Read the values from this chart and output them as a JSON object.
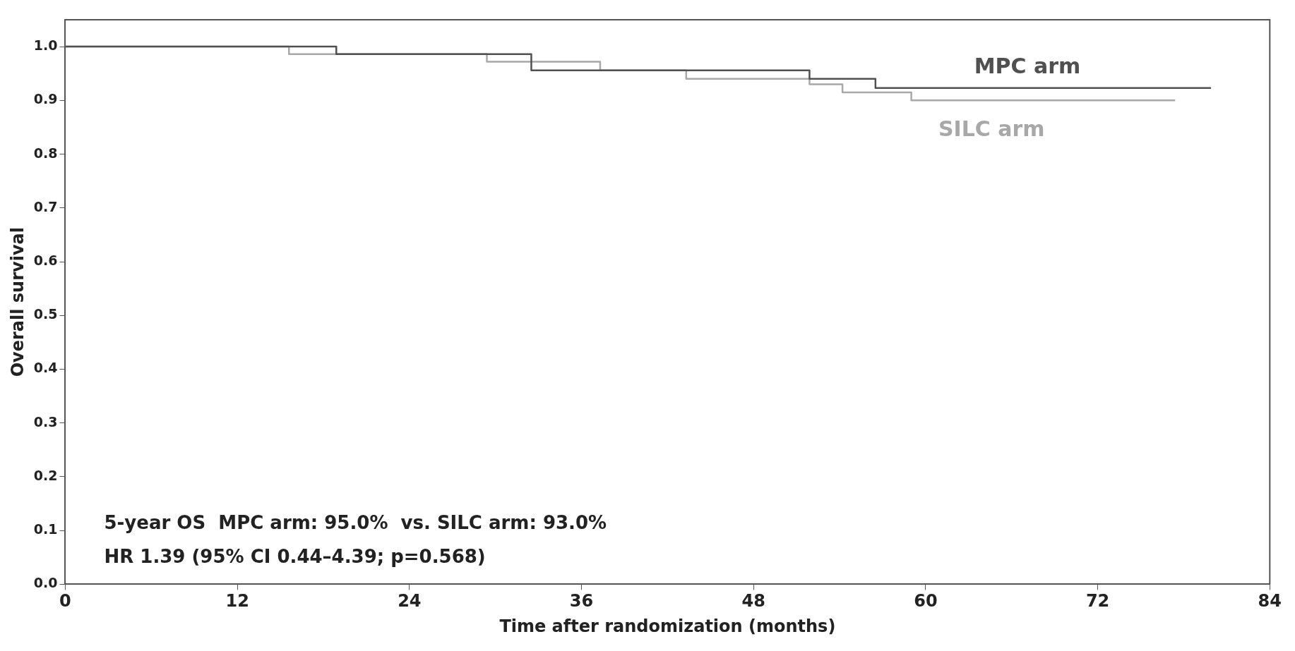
{
  "chart_data": {
    "type": "step",
    "xlabel": "Time after randomization (months)",
    "ylabel": "Overall survival",
    "series": [
      {
        "name": "MPC arm",
        "color": "#505050",
        "x": [
          0,
          18.9,
          32.5,
          51.9,
          56.5,
          79.9
        ],
        "values": [
          1,
          0.986,
          0.956,
          0.94,
          0.923,
          0.923
        ]
      },
      {
        "name": "SILC arm",
        "color": "#a8a8a8",
        "x": [
          0,
          15.6,
          29.4,
          37.3,
          43.3,
          51.9,
          54.2,
          59,
          77.4
        ],
        "values": [
          1,
          0.986,
          0.972,
          0.956,
          0.94,
          0.93,
          0.915,
          0.9,
          0.9
        ]
      }
    ],
    "xlim": [
      0,
      84
    ],
    "xticks": [
      0,
      12,
      24,
      36,
      48,
      60,
      72,
      84
    ],
    "ylim": [
      0,
      1.05
    ],
    "yticks": [
      {
        "value": 0,
        "label": "0.0"
      },
      0.1,
      0.2,
      0.3,
      0.4,
      0.5,
      0.6,
      0.7,
      0.8,
      0.9,
      {
        "value": 1,
        "label": "1.0"
      }
    ],
    "grid": false,
    "legend": false,
    "marker": "none",
    "line_style": "solid",
    "annotations": [
      "5-year OS  MPC arm: 95.0%  vs. SILC arm: 93.0%",
      "HR 1.39 (95% CI 0.44–4.39; p=0.568)"
    ]
  }
}
